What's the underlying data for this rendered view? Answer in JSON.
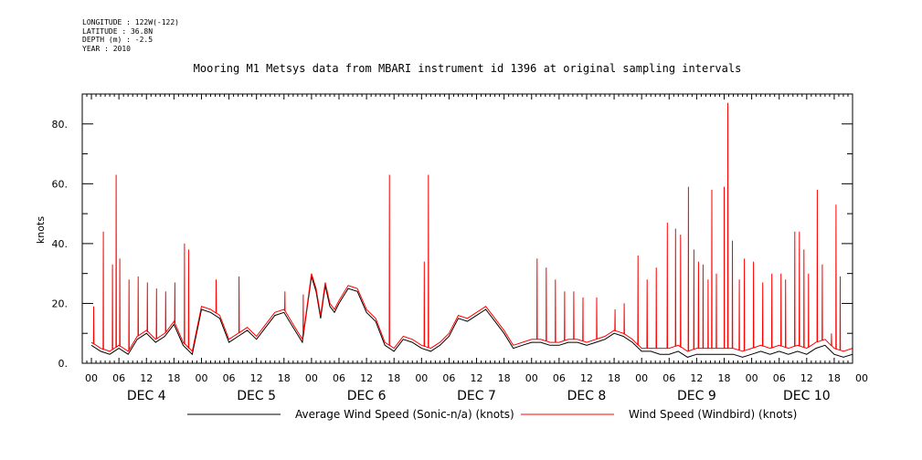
{
  "meta_lines": [
    "LONGITUDE : 122W(-122)",
    "LATITUDE : 36.8N",
    "DEPTH (m) : -2.5",
    "YEAR : 2010"
  ],
  "chart_data": {
    "type": "line",
    "title": "Mooring M1 Metsys data from MBARI instrument id 1396 at original sampling intervals",
    "ylabel": "knots",
    "xlabel": "",
    "ylim": [
      0,
      90
    ],
    "yticks": [
      0,
      20,
      40,
      60,
      80
    ],
    "ytick_labels": [
      "0.",
      "20.",
      "40.",
      "60.",
      "80."
    ],
    "xlim_hours": [
      -2,
      166
    ],
    "hour_tick_labels": [
      "00",
      "06",
      "12",
      "18",
      "00",
      "06",
      "12",
      "18",
      "00",
      "06",
      "12",
      "18",
      "00",
      "06",
      "12",
      "18",
      "00",
      "06",
      "12",
      "18",
      "00",
      "06",
      "12",
      "18",
      "00",
      "06",
      "12",
      "18",
      "00"
    ],
    "day_labels": [
      "DEC 4",
      "DEC 5",
      "DEC 6",
      "DEC 7",
      "DEC 8",
      "DEC 9",
      "DEC 10"
    ],
    "grid": false,
    "legend_position": "bottom",
    "series": [
      {
        "name": "Average Wind Speed (Sonic-n/a) (knots)",
        "color": "#000000",
        "x_hours": [
          0,
          2,
          4,
          6,
          8,
          10,
          12,
          14,
          16,
          18,
          20,
          22,
          24,
          26,
          28,
          30,
          32,
          34,
          36,
          38,
          40,
          42,
          44,
          46,
          48,
          49,
          50,
          51,
          52,
          53,
          54,
          56,
          58,
          60,
          62,
          64,
          66,
          68,
          70,
          72,
          74,
          76,
          78,
          80,
          82,
          84,
          86,
          88,
          90,
          92,
          94,
          96,
          98,
          100,
          102,
          104,
          106,
          108,
          110,
          112,
          114,
          116,
          118,
          120,
          122,
          124,
          126,
          128,
          130,
          132,
          134,
          136,
          138,
          140,
          142,
          144,
          146,
          148,
          150,
          152,
          154,
          156,
          158,
          160,
          162,
          164,
          166
        ],
        "values": [
          6,
          4,
          3,
          5,
          3,
          8,
          10,
          7,
          9,
          13,
          6,
          3,
          18,
          17,
          15,
          7,
          9,
          11,
          8,
          12,
          16,
          17,
          12,
          7,
          29,
          24,
          15,
          26,
          19,
          17,
          20,
          25,
          24,
          17,
          14,
          6,
          4,
          8,
          7,
          5,
          4,
          6,
          9,
          15,
          14,
          16,
          18,
          14,
          10,
          5,
          6,
          7,
          7,
          6,
          6,
          7,
          7,
          6,
          7,
          8,
          10,
          9,
          7,
          4,
          4,
          3,
          3,
          4,
          2,
          3,
          3,
          3,
          3,
          3,
          2,
          3,
          4,
          3,
          4,
          3,
          4,
          3,
          5,
          6,
          3,
          2,
          3
        ]
      },
      {
        "name": "Wind Speed (Windbird) (knots)",
        "color": "#ff0000",
        "x_hours": [
          0,
          2,
          4,
          6,
          8,
          10,
          12,
          14,
          16,
          18,
          20,
          22,
          24,
          26,
          28,
          30,
          32,
          34,
          36,
          38,
          40,
          42,
          44,
          46,
          48,
          49,
          50,
          51,
          52,
          53,
          54,
          56,
          58,
          60,
          62,
          64,
          66,
          68,
          70,
          72,
          74,
          76,
          78,
          80,
          82,
          84,
          86,
          88,
          90,
          92,
          94,
          96,
          98,
          100,
          102,
          104,
          106,
          108,
          110,
          112,
          114,
          116,
          118,
          120,
          122,
          124,
          126,
          128,
          130,
          132,
          134,
          136,
          138,
          140,
          142,
          144,
          146,
          148,
          150,
          152,
          154,
          156,
          158,
          160,
          162,
          164,
          166
        ],
        "values": [
          7,
          5,
          4,
          6,
          4,
          9,
          11,
          8,
          10,
          14,
          7,
          4,
          19,
          18,
          16,
          8,
          10,
          12,
          9,
          13,
          17,
          18,
          13,
          8,
          30,
          25,
          16,
          27,
          20,
          18,
          21,
          26,
          25,
          18,
          15,
          7,
          5,
          9,
          8,
          6,
          5,
          7,
          10,
          16,
          15,
          17,
          19,
          15,
          11,
          6,
          7,
          8,
          8,
          7,
          7,
          8,
          8,
          7,
          8,
          9,
          11,
          10,
          8,
          5,
          5,
          5,
          5,
          6,
          4,
          5,
          5,
          5,
          5,
          5,
          4,
          5,
          6,
          5,
          6,
          5,
          6,
          5,
          7,
          8,
          5,
          4,
          5
        ]
      }
    ],
    "spikes": [
      {
        "h": 0.5,
        "v": 19
      },
      {
        "h": 2.6,
        "v": 44
      },
      {
        "h": 4.6,
        "v": 33
      },
      {
        "h": 5.4,
        "v": 63
      },
      {
        "h": 6.2,
        "v": 35
      },
      {
        "h": 8.2,
        "v": 28
      },
      {
        "h": 10.2,
        "v": 29
      },
      {
        "h": 12.2,
        "v": 27
      },
      {
        "h": 14.2,
        "v": 25
      },
      {
        "h": 16.2,
        "v": 24
      },
      {
        "h": 18.2,
        "v": 27
      },
      {
        "h": 20.3,
        "v": 40
      },
      {
        "h": 21.2,
        "v": 38
      },
      {
        "h": 27.2,
        "v": 28
      },
      {
        "h": 32.2,
        "v": 29
      },
      {
        "h": 42.2,
        "v": 24
      },
      {
        "h": 46.2,
        "v": 23
      },
      {
        "h": 65.0,
        "v": 63
      },
      {
        "h": 73.5,
        "v": 63
      },
      {
        "h": 72.6,
        "v": 34
      },
      {
        "h": 97.2,
        "v": 35
      },
      {
        "h": 99.2,
        "v": 32
      },
      {
        "h": 101.2,
        "v": 28
      },
      {
        "h": 103.2,
        "v": 24
      },
      {
        "h": 105.2,
        "v": 24
      },
      {
        "h": 107.2,
        "v": 22
      },
      {
        "h": 110.2,
        "v": 22
      },
      {
        "h": 114.2,
        "v": 18
      },
      {
        "h": 116.2,
        "v": 20
      },
      {
        "h": 119.2,
        "v": 36
      },
      {
        "h": 121.2,
        "v": 28
      },
      {
        "h": 123.2,
        "v": 32
      },
      {
        "h": 125.6,
        "v": 47
      },
      {
        "h": 127.4,
        "v": 45
      },
      {
        "h": 128.5,
        "v": 43
      },
      {
        "h": 130.2,
        "v": 59
      },
      {
        "h": 131.4,
        "v": 38
      },
      {
        "h": 132.4,
        "v": 34
      },
      {
        "h": 133.4,
        "v": 33
      },
      {
        "h": 134.5,
        "v": 28
      },
      {
        "h": 135.3,
        "v": 58
      },
      {
        "h": 136.3,
        "v": 30
      },
      {
        "h": 138.0,
        "v": 59
      },
      {
        "h": 138.8,
        "v": 87
      },
      {
        "h": 139.8,
        "v": 41
      },
      {
        "h": 141.3,
        "v": 28
      },
      {
        "h": 142.4,
        "v": 35
      },
      {
        "h": 144.4,
        "v": 34
      },
      {
        "h": 146.4,
        "v": 27
      },
      {
        "h": 148.4,
        "v": 30
      },
      {
        "h": 150.4,
        "v": 30
      },
      {
        "h": 151.4,
        "v": 28
      },
      {
        "h": 153.4,
        "v": 44
      },
      {
        "h": 154.4,
        "v": 44
      },
      {
        "h": 155.4,
        "v": 38
      },
      {
        "h": 156.4,
        "v": 30
      },
      {
        "h": 158.3,
        "v": 58
      },
      {
        "h": 159.4,
        "v": 33
      },
      {
        "h": 161.4,
        "v": 10
      },
      {
        "h": 162.4,
        "v": 53
      },
      {
        "h": 163.3,
        "v": 29
      }
    ]
  }
}
